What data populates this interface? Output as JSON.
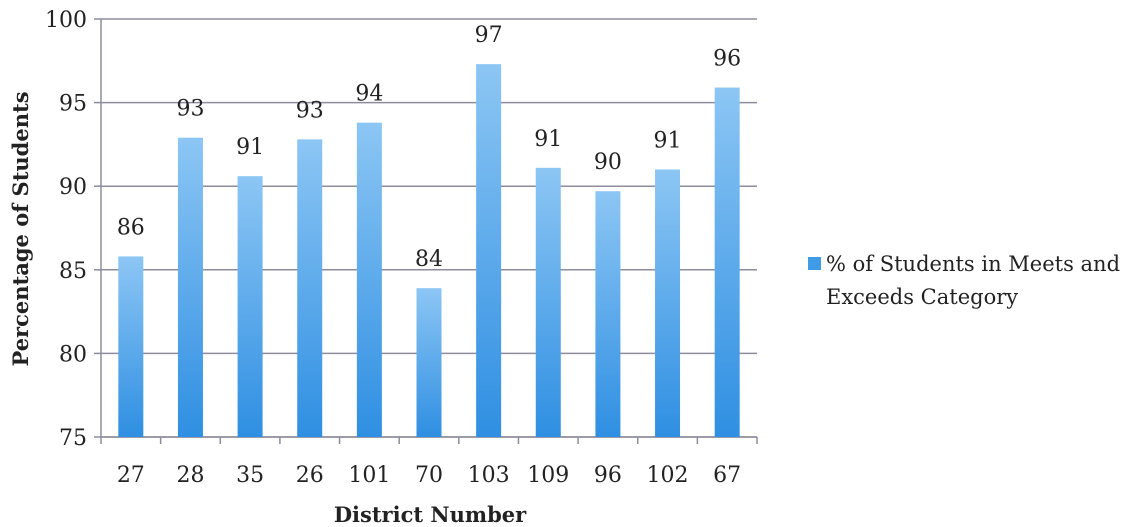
{
  "chart_data": {
    "type": "bar",
    "title": "",
    "xlabel": "District Number",
    "ylabel": "Percentage of Students",
    "ylim": [
      75,
      100
    ],
    "yticks": [
      75,
      80,
      85,
      90,
      95,
      100
    ],
    "categories": [
      "27",
      "28",
      "35",
      "26",
      "101",
      "70",
      "103",
      "109",
      "96",
      "102",
      "67"
    ],
    "series": [
      {
        "name": "% of Students in Meets and Exceeds Category",
        "values": [
          85.8,
          92.9,
          90.6,
          92.8,
          93.8,
          83.9,
          97.3,
          91.1,
          89.7,
          91.0,
          95.9
        ],
        "labels": [
          "86",
          "93",
          "91",
          "93",
          "94",
          "84",
          "97",
          "91",
          "90",
          "91",
          "96"
        ],
        "color": "#3f9be6"
      }
    ],
    "grid": true,
    "legend_position": "right"
  },
  "legend": {
    "line1": "% of Students in Meets and",
    "line2": "Exceeds Category"
  }
}
